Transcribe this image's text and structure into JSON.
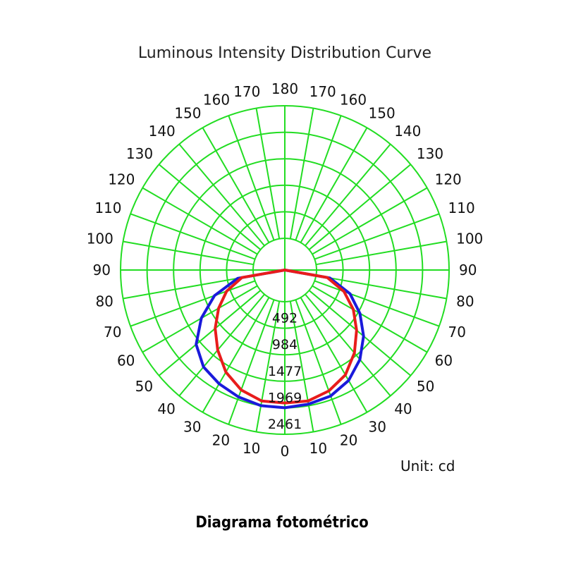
{
  "chart_data": {
    "type": "polar-line",
    "title": "Luminous Intensity Distribution Curve",
    "unit_label": "Unit: cd",
    "caption": "Diagrama fotométrico",
    "rlim": [
      0,
      2461
    ],
    "ring_values": [
      492,
      984,
      1477,
      1969,
      2461
    ],
    "ring_labels": [
      "492",
      "984",
      "1477",
      "1969",
      "2461"
    ],
    "angle_labels": [
      "0",
      "10",
      "20",
      "30",
      "40",
      "50",
      "60",
      "70",
      "80",
      "90",
      "100",
      "110",
      "120",
      "130",
      "140",
      "150",
      "160",
      "170",
      "180"
    ],
    "angle_label_values": [
      0,
      10,
      20,
      30,
      40,
      50,
      60,
      70,
      80,
      90,
      100,
      110,
      120,
      130,
      140,
      150,
      160,
      170,
      180
    ],
    "grid": true,
    "colors": {
      "grid": "#22dd22",
      "blue": "#1a1adb",
      "red": "#e81c1c"
    },
    "series": [
      {
        "color": "#1a1adb",
        "theta": [
          0,
          10,
          20,
          30,
          40,
          50,
          60,
          70,
          80,
          90
        ],
        "r_left": [
          1969,
          1969,
          1920,
          1850,
          1760,
          1560,
          1200,
          800,
          300,
          0
        ],
        "r_right": [
          1969,
          1940,
          1900,
          1780,
          1580,
          1320,
          1020,
          700,
          260,
          0
        ]
      },
      {
        "color": "#e81c1c",
        "theta": [
          0,
          10,
          20,
          30,
          40,
          50,
          60,
          70,
          80,
          90
        ],
        "r_left": [
          1880,
          1880,
          1780,
          1600,
          1350,
          1100,
          830,
          560,
          220,
          0
        ],
        "r_right": [
          1880,
          1880,
          1800,
          1660,
          1420,
          1150,
          880,
          580,
          210,
          0
        ]
      }
    ]
  }
}
